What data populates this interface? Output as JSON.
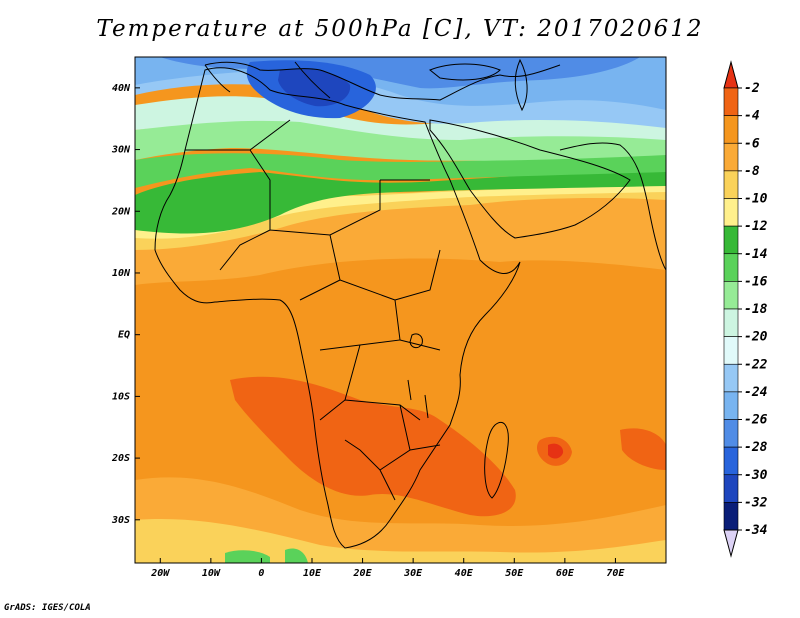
{
  "title": "Temperature at 500hPa [C], VT: 2017020612",
  "footer": "GrADS: IGES/COLA",
  "map": {
    "region": "Africa and surrounding oceans",
    "lon_range": [
      -25,
      80
    ],
    "lat_range": [
      -37,
      45
    ],
    "lat_ticks": [
      {
        "value": 40,
        "label": "40N"
      },
      {
        "value": 30,
        "label": "30N"
      },
      {
        "value": 20,
        "label": "20N"
      },
      {
        "value": 10,
        "label": "10N"
      },
      {
        "value": 0,
        "label": "EQ"
      },
      {
        "value": -10,
        "label": "10S"
      },
      {
        "value": -20,
        "label": "20S"
      },
      {
        "value": -30,
        "label": "30S"
      }
    ],
    "lon_ticks": [
      {
        "value": -20,
        "label": "20W"
      },
      {
        "value": -10,
        "label": "10W"
      },
      {
        "value": 0,
        "label": "0"
      },
      {
        "value": 10,
        "label": "10E"
      },
      {
        "value": 20,
        "label": "20E"
      },
      {
        "value": 30,
        "label": "30E"
      },
      {
        "value": 40,
        "label": "40E"
      },
      {
        "value": 50,
        "label": "50E"
      },
      {
        "value": 60,
        "label": "60E"
      },
      {
        "value": 70,
        "label": "70E"
      }
    ],
    "colorbar": {
      "levels": [
        "-2",
        "-4",
        "-6",
        "-8",
        "-10",
        "-12",
        "-14",
        "-16",
        "-18",
        "-20",
        "-22",
        "-24",
        "-26",
        "-28",
        "-30",
        "-32",
        "-34"
      ],
      "colors": [
        "#e63214",
        "#f06414",
        "#f5961e",
        "#faaa37",
        "#fad25a",
        "#fff08c",
        "#37b937",
        "#5ad25a",
        "#96eb96",
        "#cdf5e1",
        "#e1fafa",
        "#96c8f5",
        "#78b4f0",
        "#508ce6",
        "#2864dc",
        "#1e46be",
        "#0a1e78",
        "#dcd2f5"
      ]
    }
  }
}
